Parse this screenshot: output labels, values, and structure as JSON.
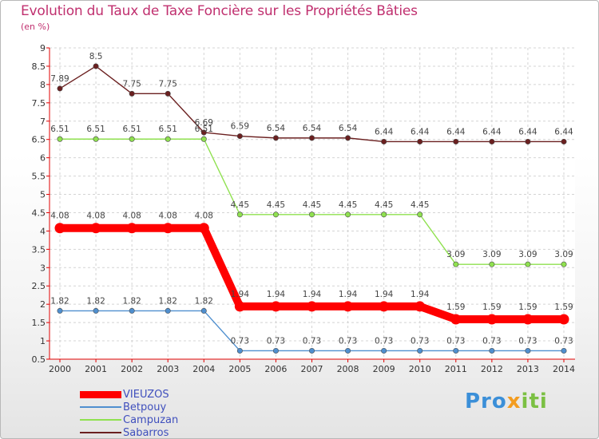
{
  "title": "Evolution du Taux de Taxe Foncière sur les Propriétés Bâties",
  "subtitle": "(en %)",
  "logo": "Proxiti",
  "colors": {
    "VIEUZOS": "#ff0000",
    "Betpouy": "#4f8fcf",
    "Campuzan": "#8fe14f",
    "Sabarros": "#6b2020",
    "title": "#c0306f",
    "legend_text": "#3f4fbd"
  },
  "chart_data": {
    "type": "line",
    "title": "Evolution du Taux de Taxe Foncière sur les Propriétés Bâties",
    "ylabel": "(en %)",
    "xlabel": "",
    "x": [
      "2000",
      "2001",
      "2002",
      "2003",
      "2004",
      "2005",
      "2006",
      "2007",
      "2008",
      "2009",
      "2010",
      "2011",
      "2012",
      "2013",
      "2014"
    ],
    "ylim": [
      0.5,
      9
    ],
    "yticks": [
      "0.5",
      "1",
      "1.5",
      "2",
      "2.5",
      "3",
      "3.5",
      "4",
      "4.5",
      "5",
      "5.5",
      "6",
      "6.5",
      "7",
      "7.5",
      "8",
      "8.5",
      "9"
    ],
    "grid": true,
    "legend_position": "bottom-left",
    "series": [
      {
        "name": "Sabarros",
        "values": [
          7.89,
          8.5,
          7.75,
          7.75,
          6.69,
          6.59,
          6.54,
          6.54,
          6.54,
          6.44,
          6.44,
          6.44,
          6.44,
          6.44,
          6.44
        ],
        "labels": [
          "7.89",
          "8.5",
          "7.75",
          "7.75",
          "6.69",
          "6.59",
          "6.54",
          "6.54",
          "6.54",
          "6.44",
          "6.44",
          "6.44",
          "6.44",
          "6.44",
          "6.44"
        ]
      },
      {
        "name": "Campuzan",
        "values": [
          6.51,
          6.51,
          6.51,
          6.51,
          6.51,
          4.45,
          4.45,
          4.45,
          4.45,
          4.45,
          4.45,
          3.09,
          3.09,
          3.09,
          3.09
        ],
        "labels": [
          "6.51",
          "6.51",
          "6.51",
          "6.51",
          "6.51",
          "4.45",
          "4.45",
          "4.45",
          "4.45",
          "4.45",
          "4.45",
          "3.09",
          "3.09",
          "3.09",
          "3.09"
        ]
      },
      {
        "name": "VIEUZOS",
        "values": [
          4.08,
          4.08,
          4.08,
          4.08,
          4.08,
          1.94,
          1.94,
          1.94,
          1.94,
          1.94,
          1.94,
          1.59,
          1.59,
          1.59,
          1.59
        ],
        "labels": [
          "4.08",
          "4.08",
          "4.08",
          "4.08",
          "4.08",
          "1.94",
          "1.94",
          "1.94",
          "1.94",
          "1.94",
          "1.94",
          "1.59",
          "1.59",
          "1.59",
          "1.59"
        ]
      },
      {
        "name": "Betpouy",
        "values": [
          1.82,
          1.82,
          1.82,
          1.82,
          1.82,
          0.73,
          0.73,
          0.73,
          0.73,
          0.73,
          0.73,
          0.73,
          0.73,
          0.73,
          0.73
        ],
        "labels": [
          "1.82",
          "1.82",
          "1.82",
          "1.82",
          "1.82",
          "0.73",
          "0.73",
          "0.73",
          "0.73",
          "0.73",
          "0.73",
          "0.73",
          "0.73",
          "0.73",
          "0.73"
        ]
      }
    ]
  },
  "legend": [
    {
      "name": "VIEUZOS",
      "color": "#ff0000",
      "thick": true
    },
    {
      "name": "Betpouy",
      "color": "#4f8fcf",
      "thick": false
    },
    {
      "name": "Campuzan",
      "color": "#8fe14f",
      "thick": false
    },
    {
      "name": "Sabarros",
      "color": "#6b2020",
      "thick": false
    }
  ]
}
